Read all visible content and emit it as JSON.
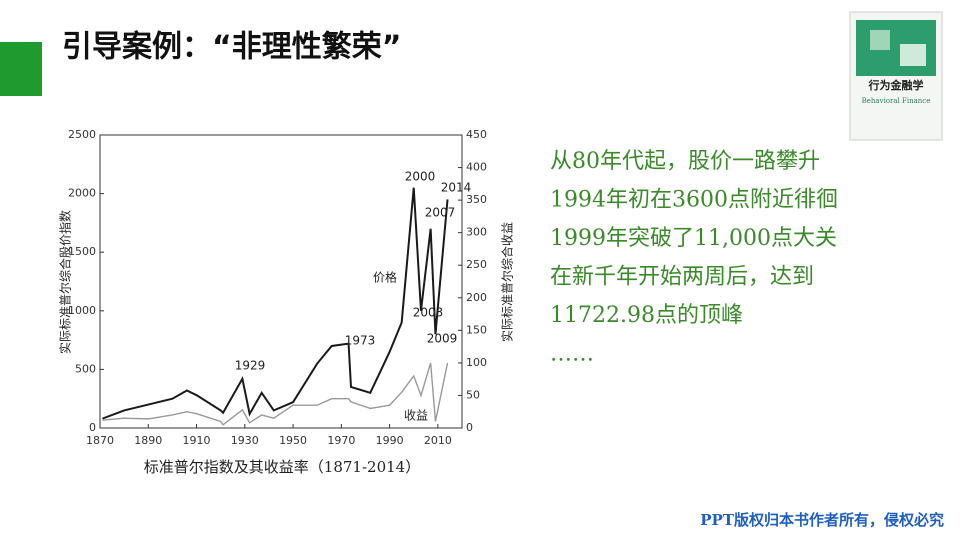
{
  "slide": {
    "title": "引导案例：“非理性繁荣”",
    "text_lines": [
      "从80年代起，股价一路攀升",
      "1994年初在3600点附近徘徊",
      "1999年突破了11,000点大关",
      "在新千年开始两周后，达到",
      "11722.98点的顶峰",
      "……"
    ],
    "footer": "PPT版权归本书作者所有，侵权必究",
    "book": {
      "title": "行为金融学",
      "subtitle": "Behavioral Finance"
    }
  },
  "chart_data": {
    "type": "line",
    "caption": "标准普尔指数及其收益率（1871-2014）",
    "ylabel": "实际标准普尔综合股价指数",
    "y2label": "实际标准普尔综合收益",
    "x": [
      1871,
      1880,
      1890,
      1900,
      1906,
      1910,
      1920,
      1921,
      1929,
      1932,
      1937,
      1942,
      1950,
      1960,
      1966,
      1973,
      1974,
      1982,
      1990,
      1995,
      2000,
      2003,
      2007,
      2009,
      2014
    ],
    "series": [
      {
        "name": "价格",
        "color": "#1a1a1a",
        "values": [
          80,
          150,
          200,
          250,
          320,
          280,
          150,
          130,
          420,
          120,
          300,
          150,
          220,
          550,
          700,
          720,
          350,
          300,
          650,
          900,
          2050,
          1000,
          1700,
          800,
          1950
        ]
      },
      {
        "name": "收益",
        "color": "#999999",
        "axis": "y2",
        "values": [
          12,
          15,
          14,
          20,
          25,
          22,
          10,
          5,
          28,
          8,
          20,
          15,
          35,
          35,
          45,
          45,
          40,
          30,
          35,
          55,
          80,
          50,
          100,
          10,
          100
        ]
      }
    ],
    "annotations": [
      "2000",
      "2014",
      "2007",
      "1973",
      "1929",
      "2003",
      "2009"
    ],
    "xlim": [
      1870,
      2020
    ],
    "xticks": [
      1870,
      1890,
      1910,
      1930,
      1950,
      1970,
      1990,
      2010
    ],
    "ylim": [
      0,
      2500
    ],
    "yticks": [
      0,
      500,
      1000,
      1500,
      2000,
      2500
    ],
    "y2lim": [
      0,
      450
    ],
    "y2ticks": [
      0,
      50,
      100,
      150,
      200,
      250,
      300,
      350,
      400,
      450
    ]
  }
}
